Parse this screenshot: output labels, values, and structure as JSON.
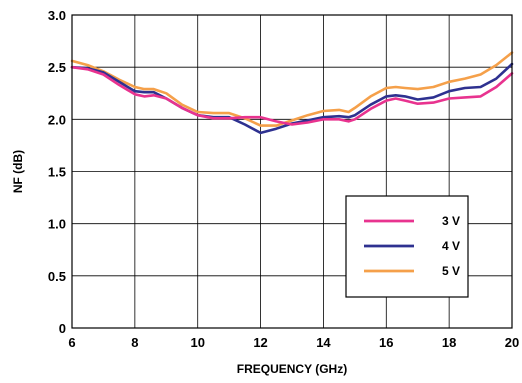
{
  "chart_data": {
    "type": "line",
    "title": "",
    "xlabel": "FREQUENCY (GHz)",
    "ylabel": "NF (dB)",
    "xlim": [
      6,
      20
    ],
    "ylim": [
      0,
      3.0
    ],
    "x_ticks": [
      "6",
      "8",
      "10",
      "12",
      "14",
      "16",
      "18",
      "20"
    ],
    "y_ticks": [
      "0",
      "0.5",
      "1.0",
      "1.5",
      "2.0",
      "2.5",
      "3.0"
    ],
    "grid": true,
    "legend_position": "bottom-right",
    "series": [
      {
        "name": "3 V",
        "color": "#e8338f",
        "x": [
          6,
          6.5,
          7,
          7.5,
          8,
          8.3,
          8.6,
          9,
          9.5,
          10,
          10.5,
          11,
          11.5,
          12,
          12.5,
          13,
          13.5,
          14,
          14.5,
          14.8,
          15,
          15.5,
          16,
          16.3,
          16.6,
          17,
          17.5,
          18,
          18.5,
          19,
          19.5,
          20
        ],
        "values": [
          2.5,
          2.48,
          2.43,
          2.33,
          2.24,
          2.22,
          2.23,
          2.2,
          2.11,
          2.04,
          2.01,
          2.01,
          2.02,
          2.02,
          1.98,
          1.95,
          1.97,
          2.0,
          2.0,
          1.98,
          2.0,
          2.1,
          2.18,
          2.2,
          2.18,
          2.15,
          2.16,
          2.2,
          2.21,
          2.22,
          2.31,
          2.44
        ]
      },
      {
        "name": "4 V",
        "color": "#2e3190",
        "x": [
          6,
          6.5,
          7,
          7.5,
          8,
          8.3,
          8.6,
          9,
          9.5,
          10,
          10.5,
          11,
          11.5,
          12,
          12.5,
          13,
          13.5,
          14,
          14.5,
          14.8,
          15,
          15.5,
          16,
          16.3,
          16.6,
          17,
          17.5,
          18,
          18.5,
          19,
          19.5,
          20
        ],
        "values": [
          2.5,
          2.49,
          2.45,
          2.36,
          2.27,
          2.26,
          2.26,
          2.2,
          2.11,
          2.04,
          2.02,
          2.02,
          1.95,
          1.87,
          1.91,
          1.96,
          1.99,
          2.02,
          2.03,
          2.02,
          2.04,
          2.14,
          2.22,
          2.23,
          2.22,
          2.19,
          2.21,
          2.27,
          2.3,
          2.31,
          2.39,
          2.53
        ]
      },
      {
        "name": "5 V",
        "color": "#f5a04a",
        "x": [
          6,
          6.5,
          7,
          7.5,
          8,
          8.3,
          8.6,
          9,
          9.5,
          10,
          10.5,
          11,
          11.5,
          12,
          12.5,
          13,
          13.5,
          14,
          14.5,
          14.8,
          15,
          15.5,
          16,
          16.3,
          16.6,
          17,
          17.5,
          18,
          18.5,
          19,
          19.5,
          20
        ],
        "values": [
          2.56,
          2.52,
          2.46,
          2.38,
          2.31,
          2.29,
          2.29,
          2.25,
          2.14,
          2.07,
          2.06,
          2.06,
          2.01,
          1.94,
          1.94,
          1.99,
          2.04,
          2.08,
          2.09,
          2.07,
          2.11,
          2.22,
          2.3,
          2.31,
          2.3,
          2.29,
          2.31,
          2.36,
          2.39,
          2.43,
          2.52,
          2.64
        ]
      }
    ]
  }
}
